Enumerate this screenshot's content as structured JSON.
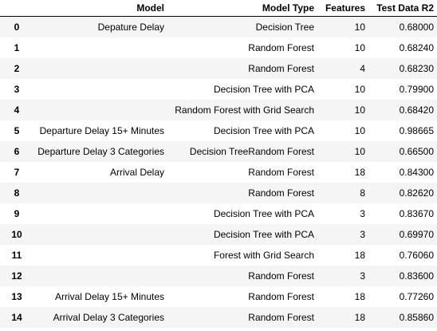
{
  "table": {
    "headers": {
      "index": "",
      "model": "Model",
      "model_type": "Model Type",
      "features": "Features",
      "r2": "Test Data R2"
    },
    "rows": [
      {
        "index": "0",
        "model": "Depature Delay",
        "model_type": "Decision Tree",
        "features": "10",
        "r2": "0.68000"
      },
      {
        "index": "1",
        "model": "",
        "model_type": "Random Forest",
        "features": "10",
        "r2": "0.68240"
      },
      {
        "index": "2",
        "model": "",
        "model_type": "Random Forest",
        "features": "4",
        "r2": "0.68230"
      },
      {
        "index": "3",
        "model": "",
        "model_type": "Decision Tree with PCA",
        "features": "10",
        "r2": "0.79900"
      },
      {
        "index": "4",
        "model": "",
        "model_type": "Random Forest with Grid Search",
        "features": "10",
        "r2": "0.68420"
      },
      {
        "index": "5",
        "model": "Departure Delay 15+ Minutes",
        "model_type": "Decision Tree with PCA",
        "features": "10",
        "r2": "0.98665"
      },
      {
        "index": "6",
        "model": "Departure Delay 3 Categories",
        "model_type": "Decision TreeRandom Forest",
        "features": "10",
        "r2": "0.66500"
      },
      {
        "index": "7",
        "model": "Arrival Delay",
        "model_type": "Random Forest",
        "features": "18",
        "r2": "0.84300"
      },
      {
        "index": "8",
        "model": "",
        "model_type": "Random Forest",
        "features": "8",
        "r2": "0.82620"
      },
      {
        "index": "9",
        "model": "",
        "model_type": "Decision Tree with PCA",
        "features": "3",
        "r2": "0.83670"
      },
      {
        "index": "10",
        "model": "",
        "model_type": "Decision Tree with PCA",
        "features": "3",
        "r2": "0.69970"
      },
      {
        "index": "11",
        "model": "",
        "model_type": "Forest with Grid Search",
        "features": "18",
        "r2": "0.76060"
      },
      {
        "index": "12",
        "model": "",
        "model_type": "Random Forest",
        "features": "3",
        "r2": "0.83600"
      },
      {
        "index": "13",
        "model": "Arrival Delay 15+ Minutes",
        "model_type": "Random Forest",
        "features": "18",
        "r2": "0.77260"
      },
      {
        "index": "14",
        "model": "Arrival Delay 3 Categories",
        "model_type": "Random Forest",
        "features": "18",
        "r2": "0.85860"
      }
    ]
  }
}
